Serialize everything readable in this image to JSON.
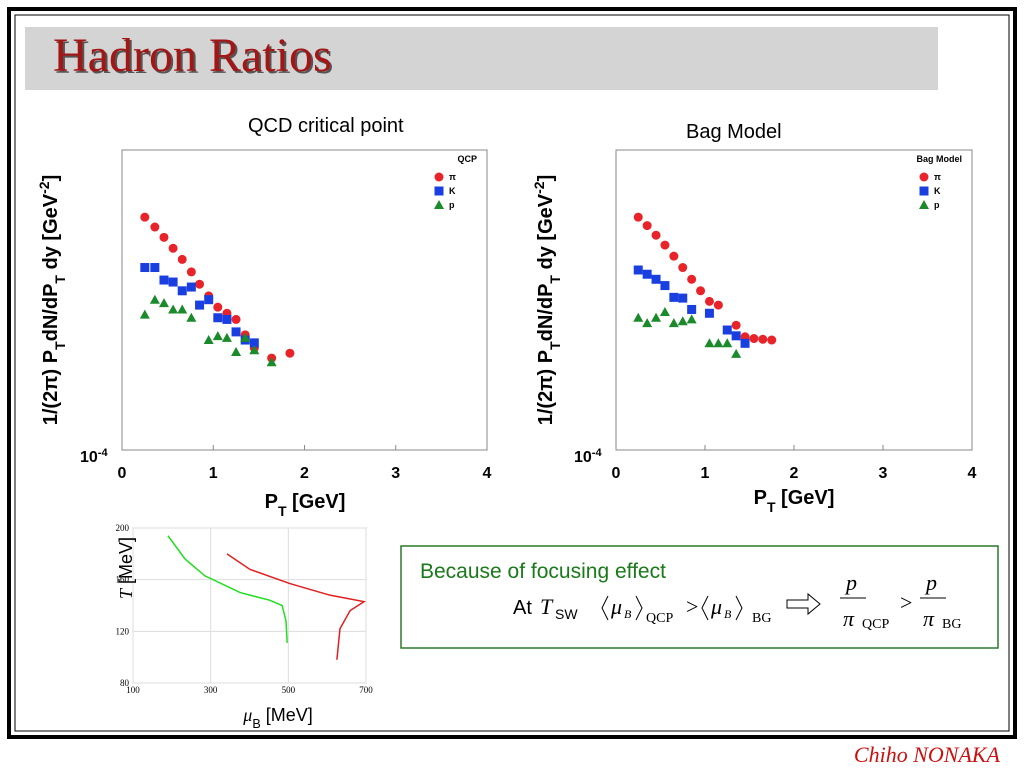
{
  "slide": {
    "title": "Hadron Ratios",
    "author": "Chiho NONAKA",
    "box": {
      "line1": "Because of focusing effect",
      "at": "At",
      "T": "T",
      "T_sub": "SW",
      "mu": "μ",
      "mu_sub": "B",
      "sub1": "QCP",
      "gt": ">",
      "sub2": "BG",
      "num": "p",
      "den": "π"
    }
  },
  "chart_data": [
    {
      "type": "scatter",
      "title": "QCD critical point",
      "legend_title": "QCP",
      "legend": "upper right",
      "log_y": true,
      "xlabel": [
        {
          "text": "P"
        },
        {
          "text": "T",
          "shift": "sub"
        },
        {
          "text": " [GeV]"
        }
      ],
      "ylabel": [
        {
          "text": "1/(2π)  P"
        },
        {
          "text": "T",
          "shift": "sub"
        },
        {
          "text": "dN/dP"
        },
        {
          "text": "T",
          "shift": "sub"
        },
        {
          "text": " dy [GeV"
        },
        {
          "text": "-2",
          "shift": "sup"
        },
        {
          "text": "]"
        }
      ],
      "xlim": [
        0,
        4
      ],
      "xticks": [
        0,
        1,
        2,
        3,
        4
      ],
      "ylim": [
        0.0001,
        10
      ],
      "yticks": [
        {
          "value": 0.0001,
          "label": "10",
          "sup": "-4"
        }
      ],
      "series": [
        {
          "name": "π",
          "color": "#e8242a",
          "marker": "circle",
          "x": [
            0.25,
            0.36,
            0.46,
            0.56,
            0.66,
            0.76,
            0.85,
            0.95,
            1.05,
            1.15,
            1.25,
            1.35,
            1.45,
            1.64,
            1.84
          ],
          "values": [
            0.76,
            0.52,
            0.35,
            0.23,
            0.15,
            0.093,
            0.058,
            0.037,
            0.024,
            0.019,
            0.015,
            0.0083,
            0.005,
            0.0034,
            0.0041
          ]
        },
        {
          "name": "K",
          "color": "#1a3fe0",
          "marker": "square",
          "x": [
            0.25,
            0.36,
            0.46,
            0.56,
            0.66,
            0.76,
            0.85,
            0.95,
            1.05,
            1.15,
            1.25,
            1.35,
            1.45
          ],
          "values": [
            0.11,
            0.11,
            0.068,
            0.063,
            0.045,
            0.052,
            0.026,
            0.032,
            0.016,
            0.015,
            0.0093,
            0.0068,
            0.0061
          ]
        },
        {
          "name": "p",
          "color": "#1a8a2a",
          "marker": "triangle",
          "x": [
            0.25,
            0.36,
            0.46,
            0.56,
            0.66,
            0.76,
            0.95,
            1.05,
            1.15,
            1.25,
            1.35,
            1.45,
            1.64
          ],
          "values": [
            0.018,
            0.032,
            0.028,
            0.022,
            0.022,
            0.016,
            0.0068,
            0.0079,
            0.0074,
            0.0043,
            0.0074,
            0.0046,
            0.0029
          ]
        }
      ]
    },
    {
      "type": "scatter",
      "title": "Bag Model",
      "legend_title": "Bag Model",
      "legend": "upper right",
      "log_y": true,
      "xlabel": [
        {
          "text": "P"
        },
        {
          "text": "T",
          "shift": "sub"
        },
        {
          "text": " [GeV]"
        }
      ],
      "ylabel": [
        {
          "text": "1/(2π)  P"
        },
        {
          "text": "T",
          "shift": "sub"
        },
        {
          "text": "dN/dP"
        },
        {
          "text": "T",
          "shift": "sub"
        },
        {
          "text": " dy [GeV"
        },
        {
          "text": "-2",
          "shift": "sup"
        },
        {
          "text": "]"
        }
      ],
      "xlim": [
        0,
        4
      ],
      "xticks": [
        0,
        1,
        2,
        3,
        4
      ],
      "ylim": [
        0.0001,
        10
      ],
      "yticks": [
        {
          "value": 0.0001,
          "label": "10",
          "sup": "-4"
        }
      ],
      "series": [
        {
          "name": "π",
          "color": "#e8242a",
          "marker": "circle",
          "x": [
            0.25,
            0.35,
            0.45,
            0.55,
            0.65,
            0.75,
            0.85,
            0.95,
            1.05,
            1.15,
            1.35,
            1.45,
            1.55,
            1.65,
            1.75
          ],
          "values": [
            0.76,
            0.55,
            0.38,
            0.26,
            0.17,
            0.11,
            0.07,
            0.045,
            0.03,
            0.026,
            0.012,
            0.0077,
            0.0072,
            0.007,
            0.0068
          ]
        },
        {
          "name": "K",
          "color": "#1a3fe0",
          "marker": "square",
          "x": [
            0.25,
            0.35,
            0.45,
            0.55,
            0.65,
            0.75,
            0.85,
            1.05,
            1.25,
            1.35,
            1.45
          ],
          "values": [
            0.1,
            0.085,
            0.07,
            0.055,
            0.035,
            0.034,
            0.022,
            0.019,
            0.01,
            0.008,
            0.006
          ]
        },
        {
          "name": "p",
          "color": "#1a8a2a",
          "marker": "triangle",
          "x": [
            0.25,
            0.35,
            0.45,
            0.55,
            0.65,
            0.75,
            0.85,
            1.05,
            1.15,
            1.25,
            1.35
          ],
          "values": [
            0.016,
            0.013,
            0.016,
            0.02,
            0.013,
            0.014,
            0.015,
            0.006,
            0.006,
            0.006,
            0.004
          ]
        }
      ]
    },
    {
      "type": "line",
      "grid": true,
      "xlabel": [
        {
          "text": "μ",
          "shift": "italic"
        },
        {
          "text": "B",
          "shift": "sub"
        },
        {
          "text": " [MeV]"
        }
      ],
      "ylabel": [
        {
          "text": "T",
          "shift": "italic"
        },
        {
          "text": " [MeV]"
        }
      ],
      "xlim": [
        100,
        700
      ],
      "xticks": [
        100,
        300,
        500,
        700
      ],
      "ylim": [
        80,
        200
      ],
      "yticks": [
        80,
        120,
        160,
        200
      ],
      "series": [
        {
          "color": "#22dd22",
          "x": [
            190,
            234,
            285,
            376,
            453,
            484,
            494,
            497
          ],
          "values": [
            194,
            176,
            163,
            150,
            144,
            140,
            128,
            111
          ]
        },
        {
          "color": "#e02020",
          "x": [
            342,
            401,
            504,
            607,
            695,
            659,
            633,
            625
          ],
          "values": [
            180,
            168,
            157,
            148,
            143,
            136,
            122,
            98
          ]
        }
      ]
    }
  ]
}
